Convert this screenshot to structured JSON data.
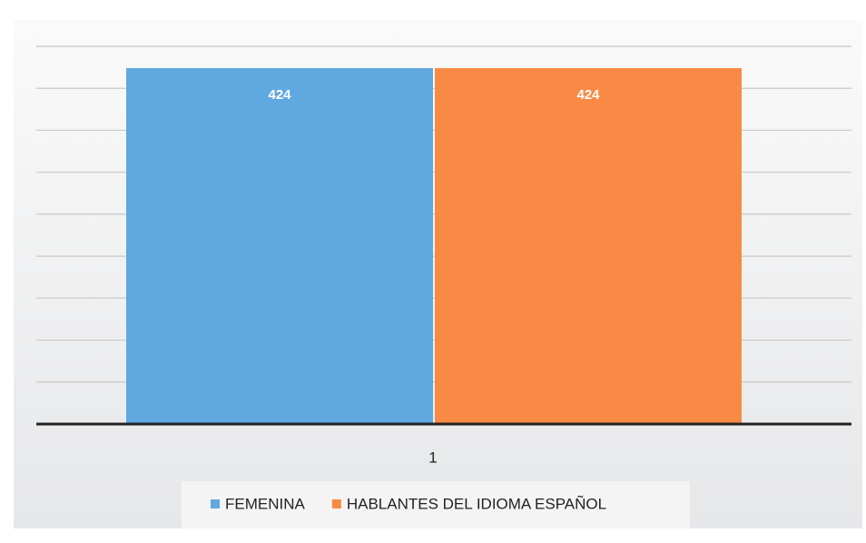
{
  "chart_data": {
    "type": "bar",
    "categories": [
      "1"
    ],
    "series": [
      {
        "name": "FEMENINA",
        "color": "#5fa8e0",
        "values": [
          424
        ]
      },
      {
        "name": "HABLANTES DEL IDIOMA ESPAÑOL",
        "color": "#f98a45",
        "values": [
          424
        ]
      }
    ],
    "ylim": [
      0,
      450
    ],
    "yticks": [
      0,
      50,
      100,
      150,
      200,
      250,
      300,
      350,
      400,
      450
    ],
    "grid": true,
    "legend": "bottom"
  }
}
